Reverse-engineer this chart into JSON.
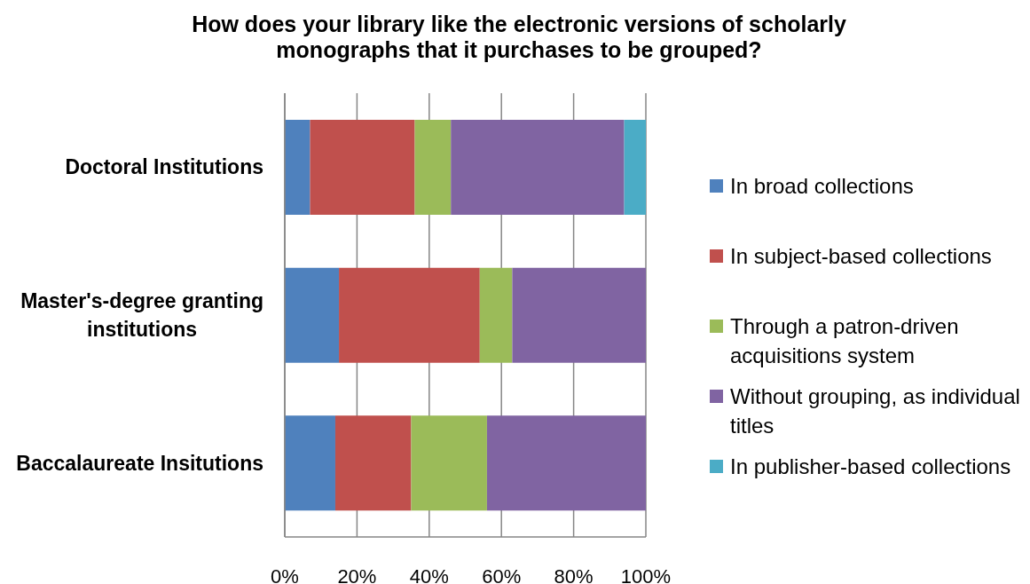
{
  "chart_data": {
    "type": "bar",
    "title": "How does your library like the electronic versions of scholarly monographs that it purchases to be grouped?",
    "categories": [
      "Doctoral Institutions",
      "Master's-degree granting institutions",
      "Baccalaureate Insitutions"
    ],
    "orientation": "horizontal",
    "stacked": true,
    "series": [
      {
        "name": "In broad collections",
        "color": "#4f81bd",
        "values": [
          7,
          15,
          14
        ]
      },
      {
        "name": "In subject-based collections",
        "color": "#c0504d",
        "values": [
          29,
          39,
          21
        ]
      },
      {
        "name": "Through a patron-driven acquisitions system",
        "color": "#9bbb59",
        "values": [
          10,
          9,
          21
        ]
      },
      {
        "name": "Without grouping, as individual titles",
        "color": "#8064a2",
        "values": [
          48,
          37,
          44
        ]
      },
      {
        "name": "In publisher-based collections",
        "color": "#4bacc6",
        "values": [
          6,
          0,
          0
        ]
      }
    ],
    "xlim": [
      0,
      100
    ],
    "xticks": [
      {
        "value": 0,
        "label": "0%"
      },
      {
        "value": 20,
        "label": "20%"
      },
      {
        "value": 40,
        "label": "40%"
      },
      {
        "value": 60,
        "label": "60%"
      },
      {
        "value": 80,
        "label": "80%"
      },
      {
        "value": 100,
        "label": "100%"
      }
    ],
    "grid": "x",
    "legend": "right"
  }
}
